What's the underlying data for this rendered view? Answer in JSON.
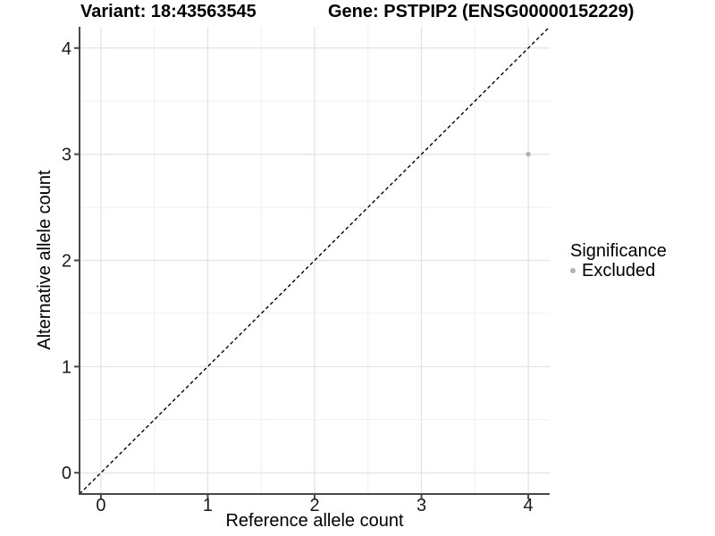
{
  "chart_data": {
    "type": "scatter",
    "title_variant": "Variant: 18:43563545",
    "title_gene": "Gene: PSTPIP2 (ENSG00000152229)",
    "xlabel": "Reference allele count",
    "ylabel": "Alternative allele count",
    "xlim": [
      -0.2,
      4.2
    ],
    "ylim": [
      -0.2,
      4.2
    ],
    "xticks": [
      0,
      1,
      2,
      3,
      4
    ],
    "yticks": [
      0,
      1,
      2,
      3,
      4
    ],
    "points": [
      {
        "x": 4,
        "y": 3,
        "series": "Excluded"
      }
    ],
    "reference_line": {
      "type": "identity",
      "style": "dashed",
      "color": "#000000"
    },
    "legend": {
      "title": "Significance",
      "position": "right",
      "items": [
        {
          "label": "Excluded",
          "color": "#b1b1b1"
        }
      ]
    },
    "colors": {
      "background": "#ffffff",
      "grid_major": "#e3e3e3",
      "grid_minor": "#efefef",
      "axis_line": "#474747",
      "tick_text": "#1a1a1a",
      "point": "#b1b1b1"
    }
  }
}
